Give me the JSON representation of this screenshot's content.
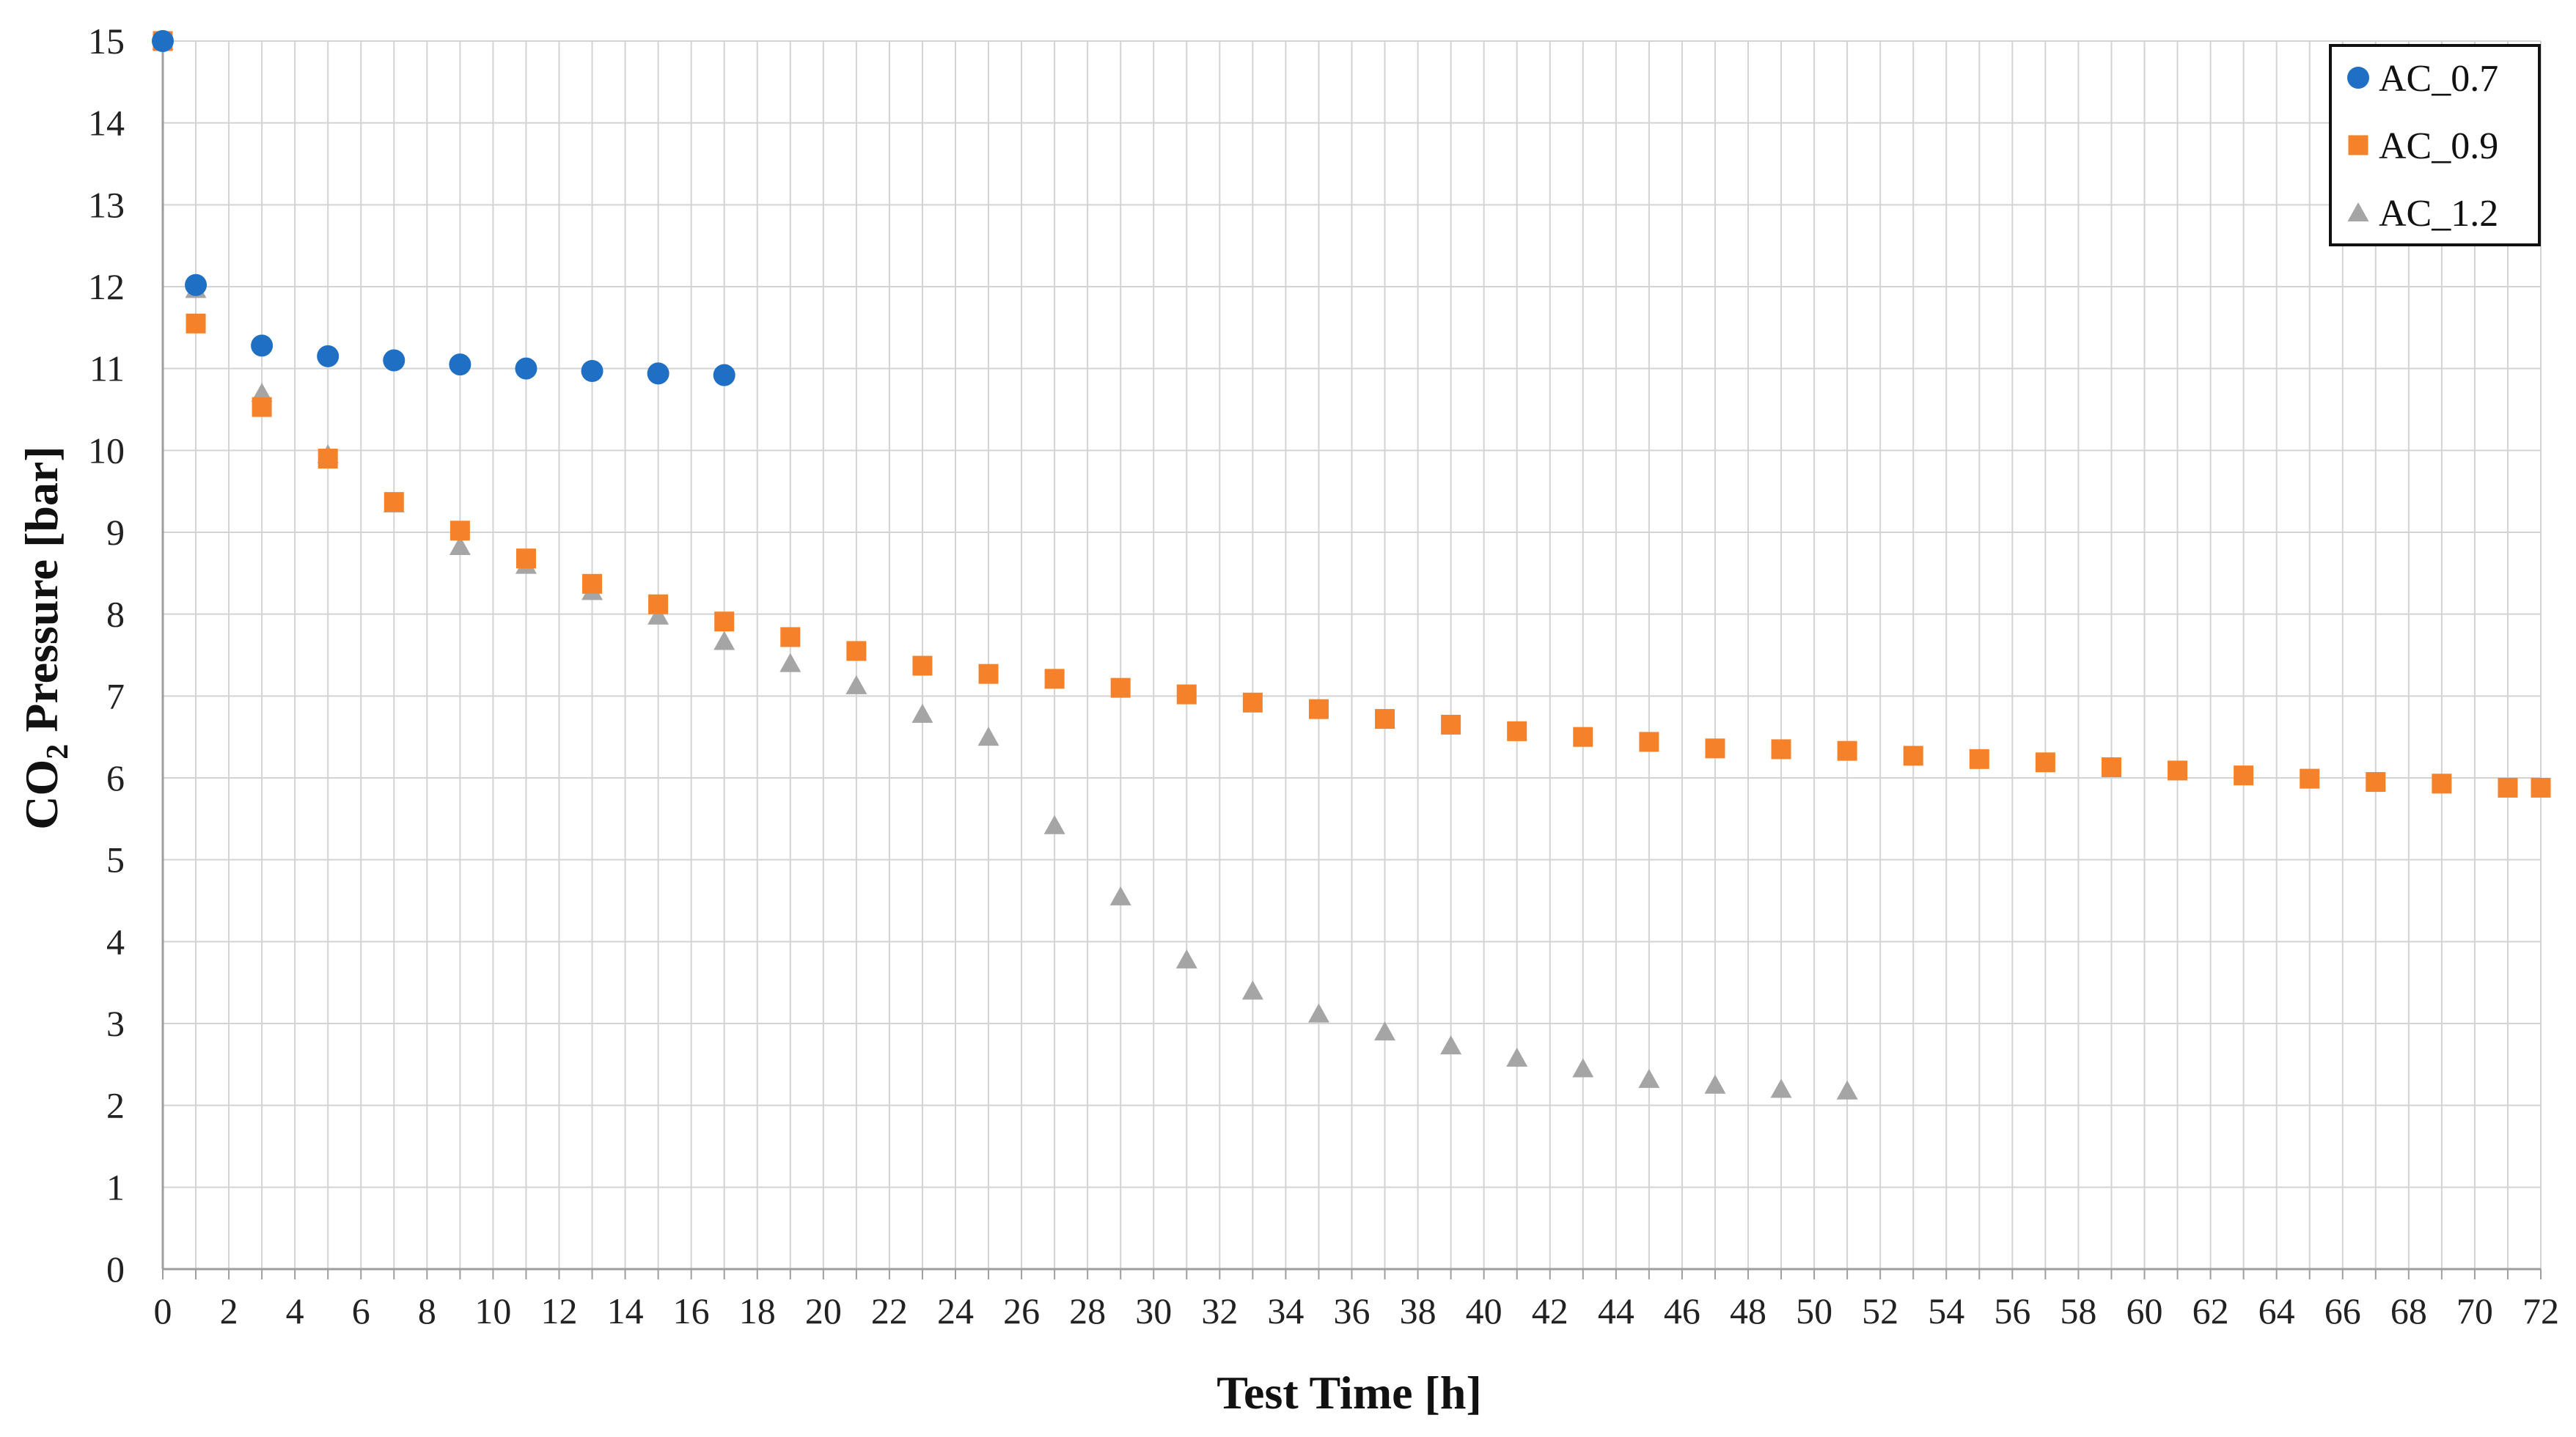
{
  "chart_data": {
    "type": "scatter",
    "title": "",
    "xlabel": "Test Time [h]",
    "ylabel": {
      "prefix": "CO",
      "subscript": "2",
      "suffix": " Pressure [bar]"
    },
    "xlim": [
      0,
      72
    ],
    "ylim": [
      0,
      15
    ],
    "xticks": [
      0,
      2,
      4,
      6,
      8,
      10,
      12,
      14,
      16,
      18,
      20,
      22,
      24,
      26,
      28,
      30,
      32,
      34,
      36,
      38,
      40,
      42,
      44,
      46,
      48,
      50,
      52,
      54,
      56,
      58,
      60,
      62,
      64,
      66,
      68,
      70,
      72
    ],
    "yticks": [
      0,
      1,
      2,
      3,
      4,
      5,
      6,
      7,
      8,
      9,
      10,
      11,
      12,
      13,
      14,
      15
    ],
    "grid": true,
    "legend_position": "top-right",
    "series": [
      {
        "name": "AC_0.7",
        "marker": "circle",
        "color": "#1f6fc5",
        "x": [
          0,
          1,
          3,
          5,
          7,
          9,
          11,
          13,
          15,
          17
        ],
        "y": [
          15,
          12.02,
          11.28,
          11.15,
          11.1,
          11.05,
          11.0,
          10.97,
          10.94,
          10.92
        ]
      },
      {
        "name": "AC_0.9",
        "marker": "square",
        "color": "#f5822a",
        "x": [
          0,
          1,
          3,
          5,
          7,
          9,
          11,
          13,
          15,
          17,
          19,
          21,
          23,
          25,
          27,
          29,
          31,
          33,
          35,
          37,
          39,
          41,
          43,
          45,
          47,
          49,
          51,
          53,
          55,
          57,
          59,
          61,
          63,
          65,
          67,
          69,
          71,
          72
        ],
        "y": [
          15,
          11.55,
          10.53,
          9.9,
          9.37,
          9.02,
          8.68,
          8.37,
          8.12,
          7.91,
          7.72,
          7.55,
          7.37,
          7.27,
          7.21,
          7.1,
          7.02,
          6.92,
          6.84,
          6.72,
          6.65,
          6.57,
          6.5,
          6.44,
          6.36,
          6.35,
          6.33,
          6.27,
          6.23,
          6.19,
          6.13,
          6.09,
          6.03,
          5.99,
          5.95,
          5.93,
          5.88,
          5.88
        ]
      },
      {
        "name": "AC_1.2",
        "marker": "triangle",
        "color": "#a5a5a5",
        "x": [
          0,
          1,
          3,
          5,
          7,
          9,
          11,
          13,
          15,
          17,
          19,
          21,
          23,
          25,
          27,
          29,
          31,
          33,
          35,
          37,
          39,
          41,
          43,
          45,
          47,
          49,
          51
        ],
        "y": [
          15,
          11.97,
          10.7,
          9.95,
          9.35,
          8.83,
          8.6,
          8.28,
          7.98,
          7.67,
          7.4,
          7.13,
          6.78,
          6.5,
          5.42,
          4.55,
          3.78,
          3.4,
          3.12,
          2.9,
          2.73,
          2.58,
          2.45,
          2.32,
          2.25,
          2.2,
          2.18
        ]
      }
    ]
  }
}
